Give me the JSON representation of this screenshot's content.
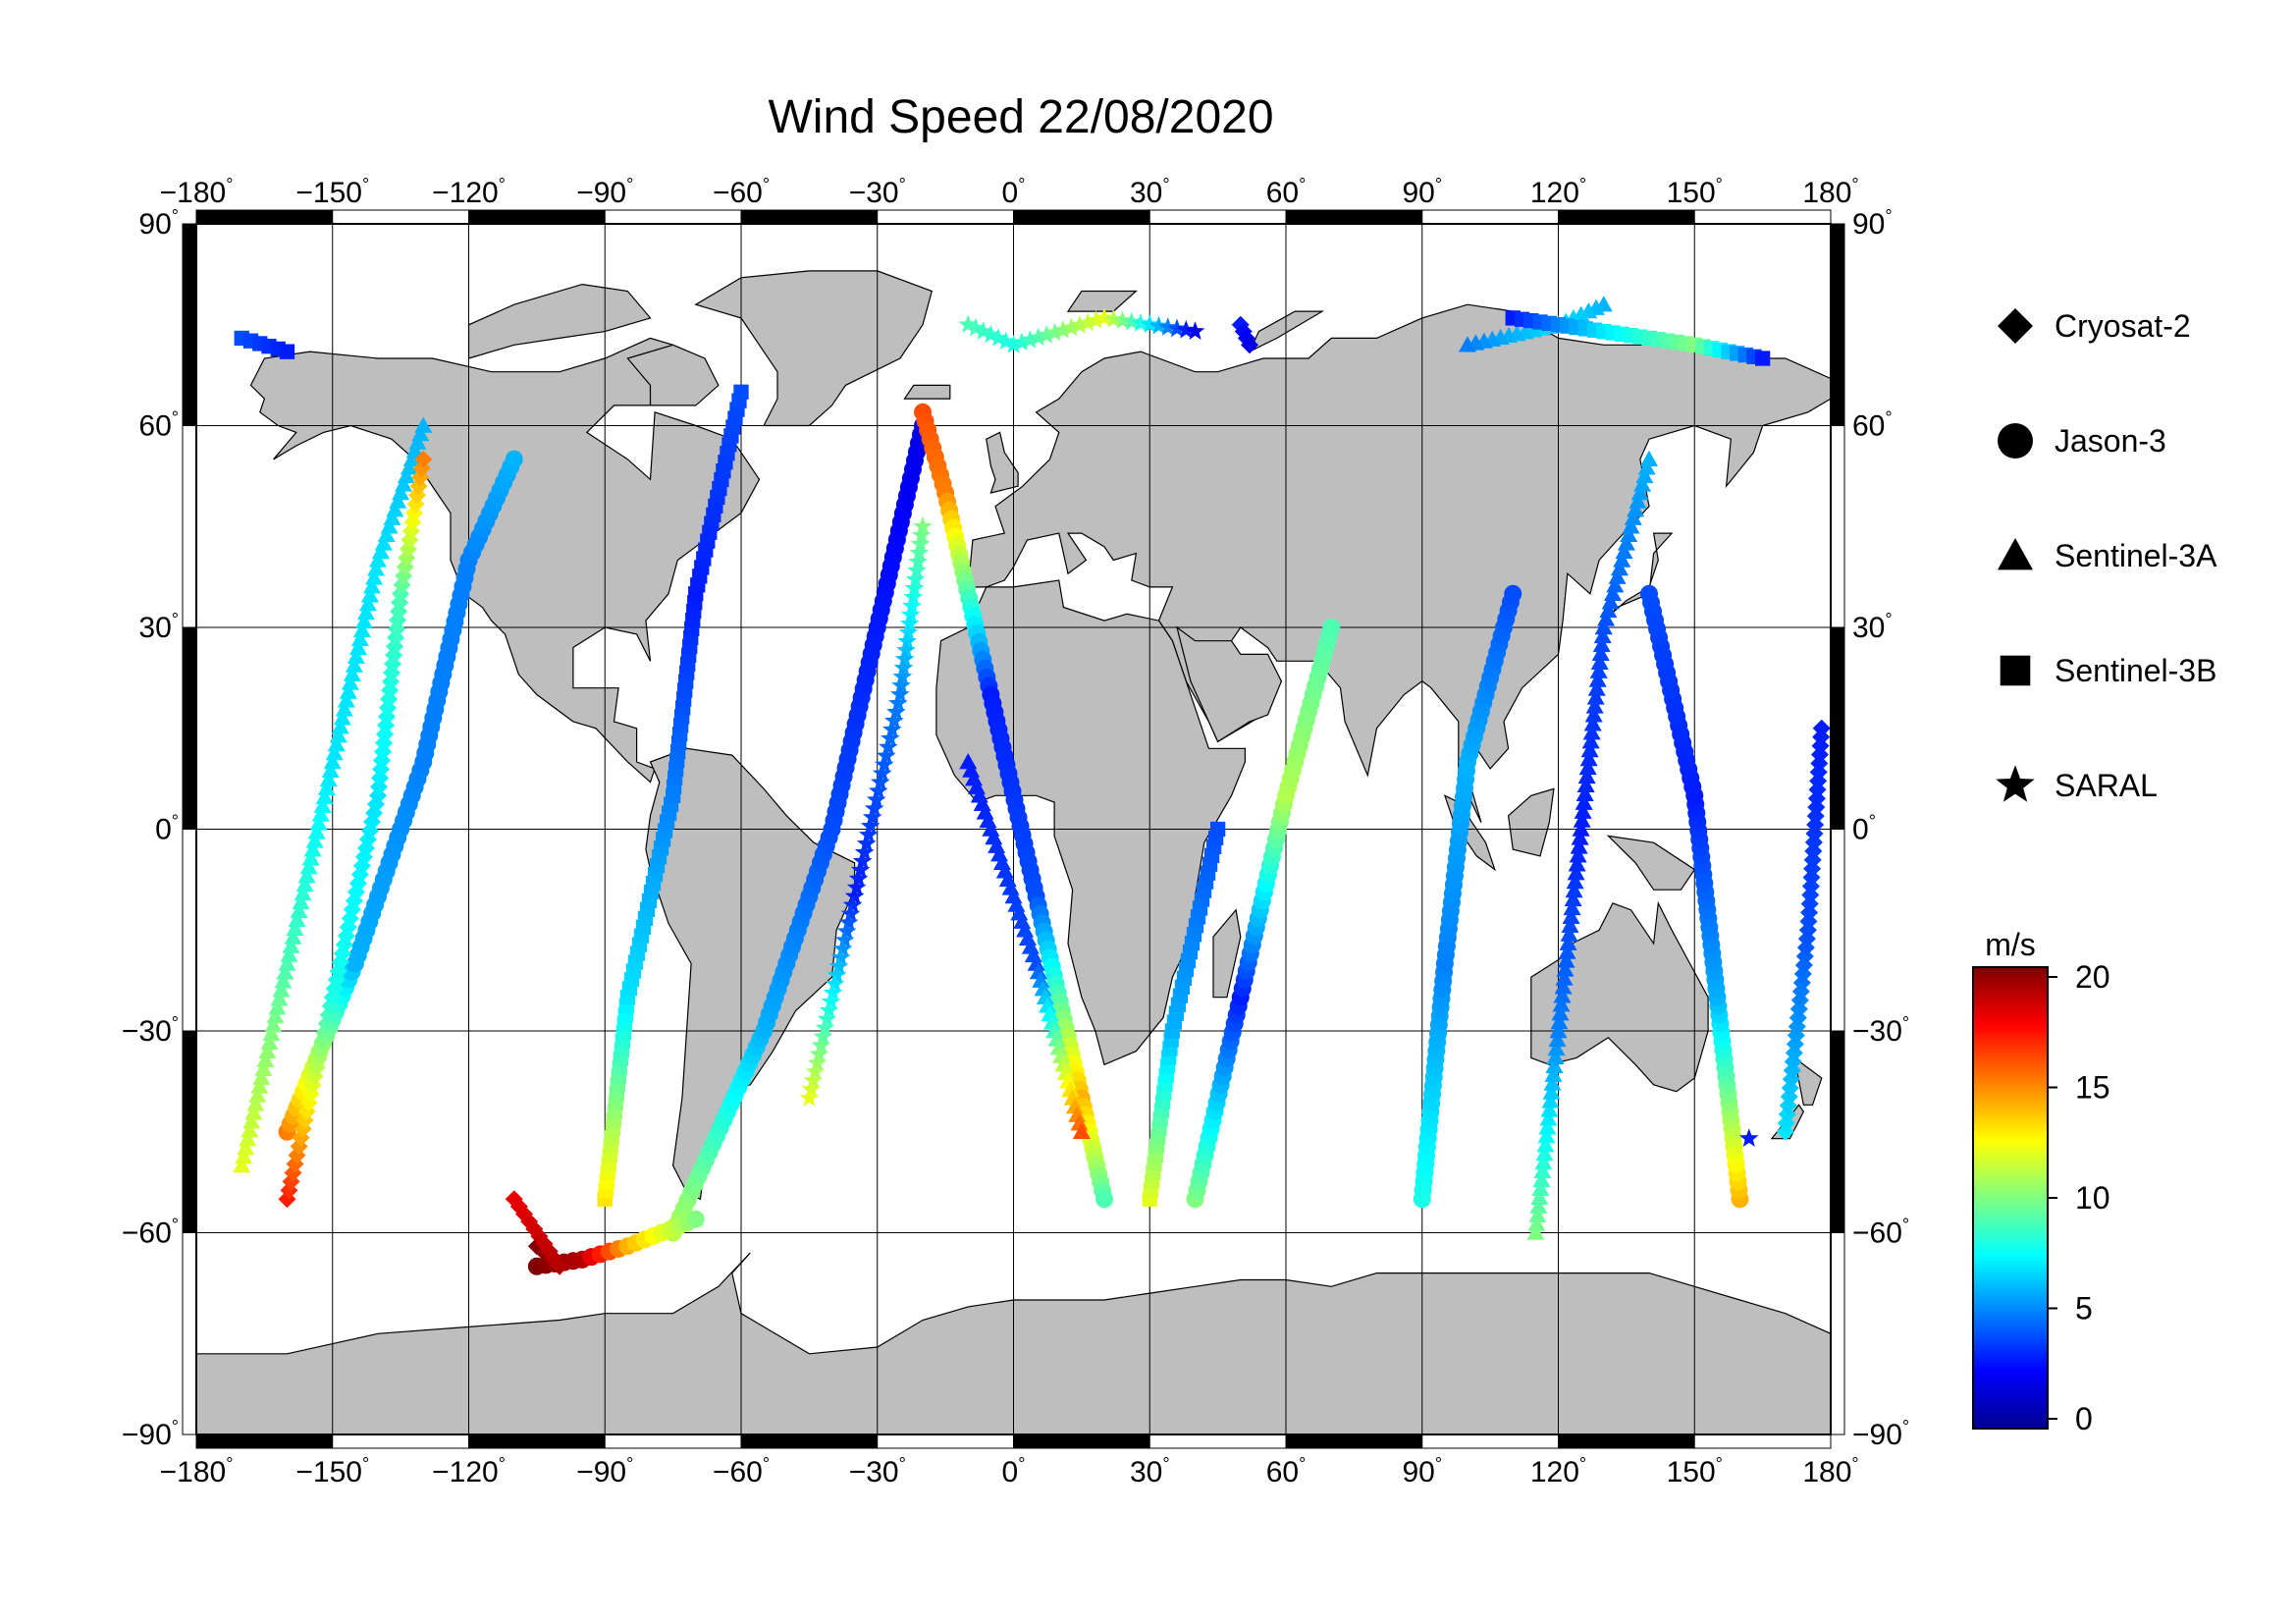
{
  "title": "Wind Speed 22/08/2020",
  "map": {
    "projection": "equirectangular",
    "lon_range": [
      -180,
      180
    ],
    "lat_range": [
      -90,
      90
    ],
    "lon_ticks": [
      -180,
      -150,
      -120,
      -90,
      -60,
      -30,
      0,
      30,
      60,
      90,
      120,
      150,
      180
    ],
    "lat_ticks": [
      90,
      60,
      30,
      0,
      -30,
      -60,
      -90
    ],
    "land_color": "#bebebe",
    "ocean_color": "#ffffff",
    "grid": true
  },
  "legend": {
    "items": [
      {
        "name": "Cryosat-2",
        "marker": "diamond"
      },
      {
        "name": "Jason-3",
        "marker": "circle"
      },
      {
        "name": "Sentinel-3A",
        "marker": "triangle"
      },
      {
        "name": "Sentinel-3B",
        "marker": "square"
      },
      {
        "name": "SARAL",
        "marker": "star"
      }
    ]
  },
  "colorbar": {
    "unit": "m/s",
    "min": 0,
    "max": 20,
    "ticks": [
      0,
      5,
      10,
      15,
      20
    ],
    "colormap": [
      "#00008f",
      "#0000ff",
      "#0080ff",
      "#00ffff",
      "#80ff80",
      "#ffff00",
      "#ff8000",
      "#ff0000",
      "#800000"
    ]
  },
  "chart_data": {
    "type": "scatter",
    "title": "Wind Speed 22/08/2020",
    "xlabel": "",
    "ylabel": "",
    "xlim": [
      -180,
      180
    ],
    "ylim": [
      -90,
      90
    ],
    "color_unit": "m/s",
    "color_range": [
      0,
      20
    ],
    "tracks": [
      {
        "name": "Jason-3",
        "marker": "circle",
        "points": [
          [
            -75,
            -60,
            11
          ],
          [
            -55,
            -30,
            6
          ],
          [
            -40,
            0,
            4
          ],
          [
            -30,
            30,
            3
          ],
          [
            -20,
            60,
            2
          ]
        ]
      },
      {
        "name": "Jason-3",
        "marker": "circle",
        "points": [
          [
            -20,
            62,
            16
          ],
          [
            -15,
            50,
            15
          ],
          [
            -5,
            20,
            3
          ],
          [
            5,
            -10,
            4
          ],
          [
            15,
            -40,
            14
          ],
          [
            20,
            -55,
            9
          ]
        ]
      },
      {
        "name": "Jason-3",
        "marker": "circle",
        "points": [
          [
            -160,
            -45,
            15
          ],
          [
            -145,
            -20,
            6
          ],
          [
            -130,
            10,
            5
          ],
          [
            -120,
            40,
            5
          ],
          [
            -110,
            55,
            6
          ]
        ]
      },
      {
        "name": "Jason-3",
        "marker": "circle",
        "points": [
          [
            -105,
            -65,
            20
          ],
          [
            -95,
            -64,
            19
          ],
          [
            -85,
            -62,
            14
          ],
          [
            -70,
            -58,
            10
          ]
        ]
      },
      {
        "name": "Jason-3",
        "marker": "circle",
        "points": [
          [
            90,
            -55,
            8
          ],
          [
            95,
            -20,
            5
          ],
          [
            100,
            10,
            6
          ],
          [
            110,
            35,
            4
          ]
        ]
      },
      {
        "name": "Jason-3",
        "marker": "circle",
        "points": [
          [
            160,
            -55,
            14
          ],
          [
            155,
            -25,
            6
          ],
          [
            150,
            5,
            3
          ],
          [
            140,
            35,
            4
          ]
        ]
      },
      {
        "name": "Jason-3",
        "marker": "circle",
        "points": [
          [
            40,
            -55,
            10
          ],
          [
            50,
            -25,
            3
          ],
          [
            60,
            5,
            11
          ],
          [
            70,
            30,
            9
          ]
        ]
      },
      {
        "name": "Sentinel-3A",
        "marker": "triangle",
        "points": [
          [
            -170,
            -50,
            12
          ],
          [
            -160,
            -20,
            9
          ],
          [
            -150,
            10,
            7
          ],
          [
            -140,
            40,
            7
          ],
          [
            -130,
            60,
            6
          ]
        ]
      },
      {
        "name": "Sentinel-3A",
        "marker": "triangle",
        "points": [
          [
            115,
            -60,
            10
          ],
          [
            120,
            -30,
            5
          ],
          [
            125,
            0,
            3
          ],
          [
            130,
            30,
            4
          ],
          [
            140,
            55,
            6
          ]
        ]
      },
      {
        "name": "Sentinel-3A",
        "marker": "triangle",
        "points": [
          [
            -10,
            10,
            3
          ],
          [
            5,
            -20,
            4
          ],
          [
            15,
            -45,
            16
          ]
        ]
      },
      {
        "name": "Sentinel-3A",
        "marker": "triangle",
        "points": [
          [
            130,
            78,
            6
          ],
          [
            120,
            75,
            7
          ],
          [
            100,
            72,
            5
          ]
        ]
      },
      {
        "name": "Sentinel-3B",
        "marker": "square",
        "points": [
          [
            -90,
            -55,
            13
          ],
          [
            -85,
            -25,
            7
          ],
          [
            -75,
            5,
            5
          ],
          [
            -70,
            35,
            3
          ],
          [
            -60,
            65,
            4
          ]
        ]
      },
      {
        "name": "Sentinel-3B",
        "marker": "square",
        "points": [
          [
            30,
            -55,
            12
          ],
          [
            35,
            -30,
            6
          ],
          [
            45,
            0,
            4
          ]
        ]
      },
      {
        "name": "Sentinel-3B",
        "marker": "square",
        "points": [
          [
            110,
            76,
            3
          ],
          [
            130,
            74,
            7
          ],
          [
            150,
            72,
            10
          ],
          [
            165,
            70,
            3
          ]
        ]
      },
      {
        "name": "Sentinel-3B",
        "marker": "square",
        "points": [
          [
            -170,
            73,
            4
          ],
          [
            -160,
            71,
            3
          ]
        ]
      },
      {
        "name": "Cryosat-2",
        "marker": "diamond",
        "points": [
          [
            -160,
            -55,
            17
          ],
          [
            -150,
            -25,
            8
          ],
          [
            -140,
            5,
            7
          ],
          [
            -135,
            35,
            9
          ],
          [
            -130,
            55,
            15
          ]
        ]
      },
      {
        "name": "Cryosat-2",
        "marker": "diamond",
        "points": [
          [
            -105,
            -62,
            20
          ],
          [
            -100,
            -65,
            19
          ],
          [
            -110,
            -55,
            18
          ]
        ]
      },
      {
        "name": "Cryosat-2",
        "marker": "diamond",
        "points": [
          [
            50,
            75,
            3
          ],
          [
            52,
            72,
            2
          ]
        ]
      },
      {
        "name": "Cryosat-2",
        "marker": "diamond",
        "points": [
          [
            170,
            -45,
            7
          ],
          [
            175,
            -15,
            4
          ],
          [
            178,
            15,
            3
          ]
        ]
      },
      {
        "name": "SARAL",
        "marker": "star",
        "points": [
          [
            -10,
            75,
            9
          ],
          [
            0,
            72,
            8
          ],
          [
            20,
            76,
            12
          ],
          [
            40,
            74,
            2
          ]
        ]
      },
      {
        "name": "SARAL",
        "marker": "star",
        "points": [
          [
            -20,
            45,
            10
          ],
          [
            -25,
            20,
            5
          ],
          [
            -35,
            -10,
            3
          ],
          [
            -45,
            -40,
            12
          ]
        ]
      },
      {
        "name": "SARAL",
        "marker": "star",
        "points": [
          [
            162,
            -46,
            3
          ]
        ]
      }
    ]
  }
}
